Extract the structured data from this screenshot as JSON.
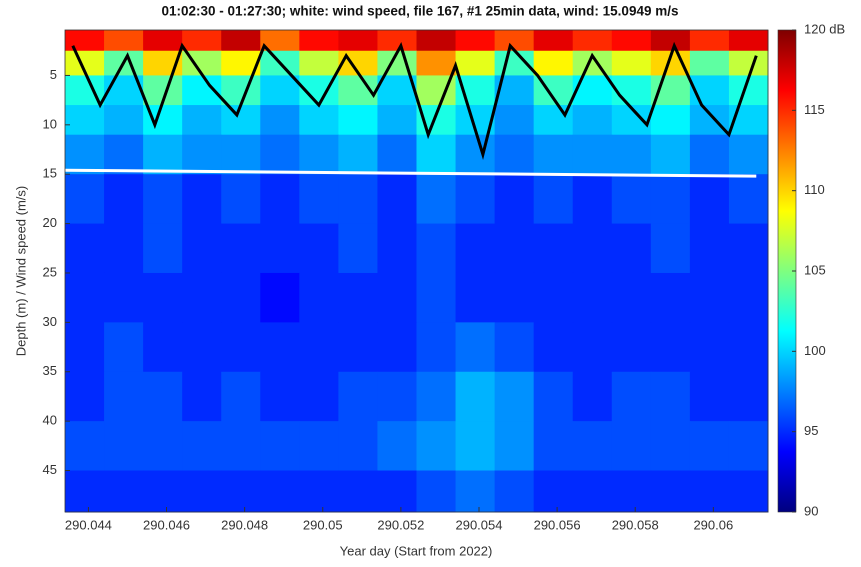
{
  "chart_data": {
    "type": "heatmap",
    "title": "01:02:30 - 01:27:30; white: wind speed, file 167, #1 25min data, wind: 15.0949 m/s",
    "x_label": "Year day (Start from 2022)",
    "y_label": "Depth (m) / Wind speed (m/s)",
    "xlim": [
      290.0434,
      290.0614
    ],
    "xticks": [
      290.044,
      290.046,
      290.048,
      290.05,
      290.052,
      290.054,
      290.056,
      290.058,
      290.06
    ],
    "ylim": [
      0.4,
      49.2
    ],
    "y_reversed": true,
    "yticks": [
      5,
      10,
      15,
      20,
      25,
      30,
      35,
      40,
      45
    ],
    "colormap": "jet",
    "clim": [
      90,
      120
    ],
    "cticks": [
      90,
      95,
      100,
      105,
      110,
      115,
      {
        "value": 120,
        "label": "120 dB"
      }
    ],
    "x_edges": [
      290.0434,
      290.0444,
      290.0454,
      290.0464,
      290.0474,
      290.0484,
      290.0494,
      290.0504,
      290.0514,
      290.0524,
      290.0534,
      290.0544,
      290.0554,
      290.0564,
      290.0574,
      290.0584,
      290.0594,
      290.0604,
      290.0614
    ],
    "y_edges": [
      0.4,
      2.5,
      5,
      8,
      11,
      15,
      20,
      25,
      30,
      35,
      40,
      45,
      49.2
    ],
    "z": [
      [
        116,
        114,
        117,
        115,
        118,
        113,
        116,
        117,
        115,
        118,
        116,
        114,
        117,
        115,
        116,
        118,
        115,
        117
      ],
      [
        108,
        104,
        110,
        106,
        109,
        103,
        107,
        110,
        105,
        112,
        108,
        103,
        109,
        106,
        108,
        110,
        104,
        107
      ],
      [
        102,
        100,
        104,
        101,
        103,
        100,
        102,
        104,
        100,
        106,
        102,
        99,
        103,
        101,
        102,
        104,
        100,
        102
      ],
      [
        100,
        99,
        101,
        99,
        100,
        98,
        100,
        101,
        99,
        102,
        100,
        98,
        100,
        99,
        100,
        101,
        99,
        100
      ],
      [
        98,
        97,
        99,
        98,
        98,
        97,
        98,
        99,
        97,
        100,
        98,
        97,
        98,
        98,
        98,
        99,
        97,
        98
      ],
      [
        96,
        95,
        96,
        95,
        96,
        95,
        96,
        96,
        95,
        97,
        96,
        95,
        96,
        95,
        96,
        96,
        95,
        96
      ],
      [
        95,
        95,
        96,
        95,
        95,
        95,
        95,
        96,
        95,
        96,
        95,
        95,
        95,
        95,
        95,
        96,
        95,
        95
      ],
      [
        95,
        95,
        95,
        95,
        95,
        94,
        95,
        95,
        95,
        96,
        95,
        95,
        95,
        95,
        95,
        95,
        95,
        95
      ],
      [
        95,
        96,
        95,
        95,
        95,
        95,
        95,
        95,
        95,
        96,
        97,
        96,
        95,
        95,
        95,
        95,
        95,
        95
      ],
      [
        95,
        96,
        96,
        95,
        96,
        95,
        95,
        96,
        96,
        97,
        99,
        98,
        96,
        95,
        96,
        96,
        95,
        95
      ],
      [
        96,
        96,
        96,
        96,
        96,
        96,
        96,
        96,
        97,
        98,
        99,
        98,
        96,
        96,
        96,
        96,
        96,
        96
      ],
      [
        95,
        95,
        95,
        95,
        95,
        95,
        95,
        95,
        95,
        96,
        97,
        96,
        95,
        95,
        95,
        95,
        95,
        95
      ]
    ],
    "lines": [
      {
        "color": "#000000",
        "x": [
          290.0436,
          290.0443,
          290.045,
          290.0457,
          290.0464,
          290.0471,
          290.0478,
          290.0485,
          290.0492,
          290.0499,
          290.0506,
          290.0513,
          290.052,
          290.0527,
          290.0534,
          290.0541,
          290.0548,
          290.0555,
          290.0562,
          290.0569,
          290.0576,
          290.0583,
          290.059,
          290.0597,
          290.0604,
          290.0611
        ],
        "values": [
          2,
          8,
          3,
          10,
          2,
          6,
          9,
          2,
          5,
          8,
          3,
          7,
          2,
          11,
          4,
          13,
          2,
          5,
          9,
          3,
          7,
          10,
          2,
          8,
          11,
          3
        ]
      },
      {
        "color": "#ffffff",
        "x": [
          290.0434,
          290.0611
        ],
        "values": [
          14.6,
          15.2
        ]
      }
    ]
  }
}
